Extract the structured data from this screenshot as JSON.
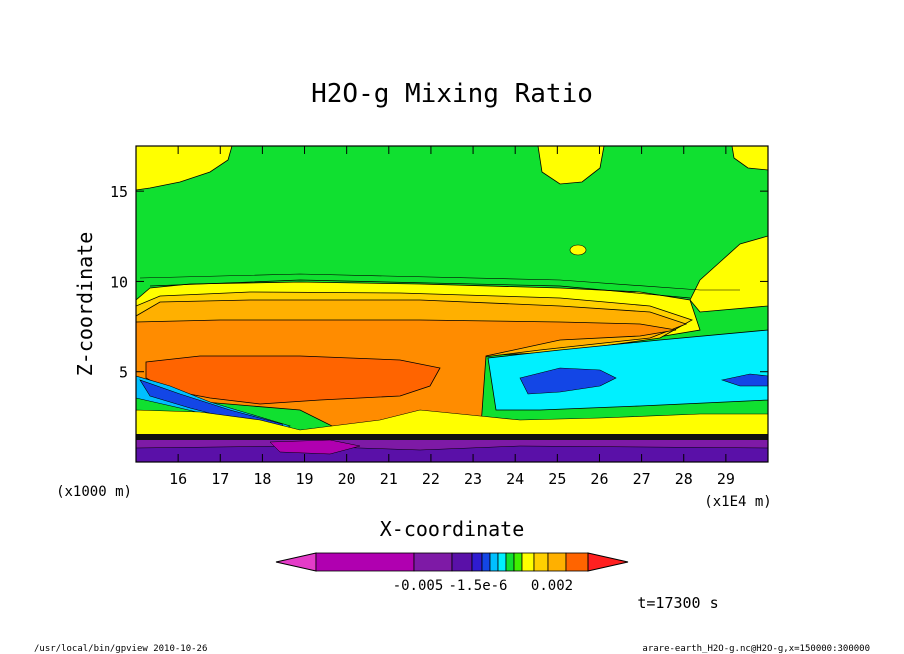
{
  "chart_data": {
    "type": "heatmap",
    "title": "H2O-g Mixing Ratio",
    "xlabel": "X-coordinate",
    "ylabel": "Z-coordinate",
    "x_unit": "(x1E4 m)",
    "y_unit": "(x1000 m)",
    "x_ticks": [
      16,
      17,
      18,
      19,
      20,
      21,
      22,
      23,
      24,
      25,
      26,
      27,
      28,
      29
    ],
    "y_ticks": [
      5,
      10,
      15
    ],
    "xlim": [
      15,
      30
    ],
    "ylim": [
      0,
      17.5
    ],
    "colorbar_labels": [
      "-0.005",
      "-1.5e-6",
      "0.002"
    ],
    "colors": {
      "magenta": "#e43cc8",
      "deep_violet": "#b000b0",
      "purple": "#7e1aa6",
      "indigo": "#5a10a8",
      "navy": "#2f1bd0",
      "blue": "#1346e6",
      "sky": "#00bfff",
      "cyan": "#00f0ff",
      "green": "#10e030",
      "bright_green": "#40f000",
      "yellow": "#ffff00",
      "gold": "#ffd000",
      "orange_light": "#ffb000",
      "orange": "#ff8c00",
      "orange_red": "#ff6400",
      "red": "#ff2020"
    }
  },
  "time_label": "t=17300 s",
  "footer_left": "/usr/local/bin/gpview  2010-10-26",
  "footer_right": "arare-earth_H2O-g.nc@H2O-g,x=150000:300000"
}
